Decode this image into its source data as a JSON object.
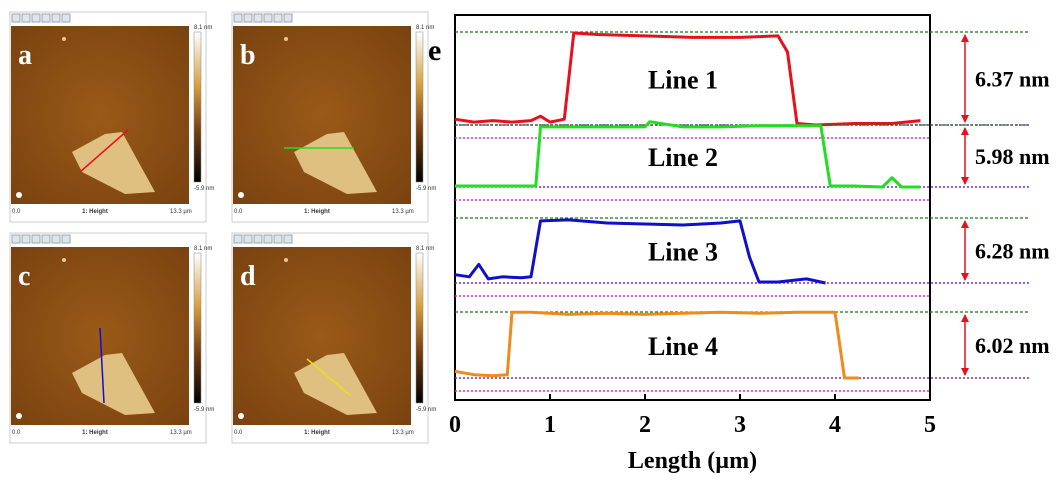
{
  "afm_panels": {
    "labels": [
      "a",
      "b",
      "c",
      "d"
    ],
    "colorbar_max": "8.1 nm",
    "colorbar_min": "-5.9 nm",
    "scan_start": "0.0",
    "channel": "1: Height",
    "scan_end": "13.3 µm"
  },
  "chart_data": {
    "type": "line",
    "panel_label": "e",
    "xlabel": "Length (µm)",
    "xlim": [
      0,
      5
    ],
    "xticks": [
      0,
      1,
      2,
      3,
      4,
      5
    ],
    "step_heights": [
      6.37,
      5.98,
      6.28,
      6.02
    ],
    "step_height_labels": [
      "6.37 nm",
      "5.98 nm",
      "6.28 nm",
      "6.02 nm"
    ],
    "series": [
      {
        "name": "Line 1",
        "color": "#e8101c",
        "x": [
          0,
          0.2,
          0.4,
          0.6,
          0.8,
          0.9,
          1.0,
          1.15,
          1.25,
          1.5,
          2.0,
          2.5,
          3.0,
          3.4,
          3.5,
          3.6,
          3.8,
          4.2,
          4.6,
          4.9
        ],
        "values": [
          0.4,
          0.2,
          0.3,
          0.2,
          0.3,
          0.6,
          0.2,
          0.4,
          6.3,
          6.2,
          6.1,
          6.0,
          6.0,
          6.1,
          5.0,
          0.1,
          0.0,
          0.1,
          0.1,
          0.3
        ]
      },
      {
        "name": "Line 2",
        "color": "#22dd22",
        "x": [
          0,
          0.3,
          0.6,
          0.85,
          0.9,
          1.2,
          1.6,
          2.0,
          2.05,
          2.4,
          2.8,
          3.2,
          3.6,
          3.85,
          3.95,
          4.2,
          4.5,
          4.6,
          4.7,
          4.9
        ],
        "values": [
          0.1,
          0.1,
          0.1,
          0.1,
          5.8,
          5.8,
          5.8,
          5.8,
          6.3,
          5.8,
          5.8,
          5.9,
          5.9,
          5.9,
          0.1,
          0.1,
          0.0,
          0.9,
          0.0,
          0.0
        ]
      },
      {
        "name": "Line 3",
        "color": "#1010cc",
        "x": [
          0,
          0.15,
          0.25,
          0.35,
          0.5,
          0.7,
          0.8,
          0.9,
          1.2,
          1.6,
          2.0,
          2.4,
          2.8,
          3.0,
          3.1,
          3.2,
          3.4,
          3.7,
          3.9
        ],
        "values": [
          0.8,
          0.6,
          1.8,
          0.4,
          0.6,
          0.5,
          0.6,
          6.0,
          6.1,
          5.8,
          5.7,
          5.6,
          5.8,
          6.0,
          2.5,
          0.1,
          0.1,
          0.4,
          0.0
        ]
      },
      {
        "name": "Line 4",
        "color": "#f08a1c",
        "x": [
          0,
          0.2,
          0.4,
          0.55,
          0.6,
          0.8,
          1.2,
          1.6,
          2.0,
          2.4,
          2.8,
          3.2,
          3.6,
          4.0,
          4.1,
          4.2,
          4.25
        ],
        "values": [
          0.6,
          0.3,
          0.2,
          0.3,
          6.0,
          6.0,
          5.8,
          5.9,
          5.8,
          5.9,
          6.0,
          5.9,
          6.0,
          6.0,
          0.0,
          0.0,
          0.0
        ]
      }
    ]
  }
}
